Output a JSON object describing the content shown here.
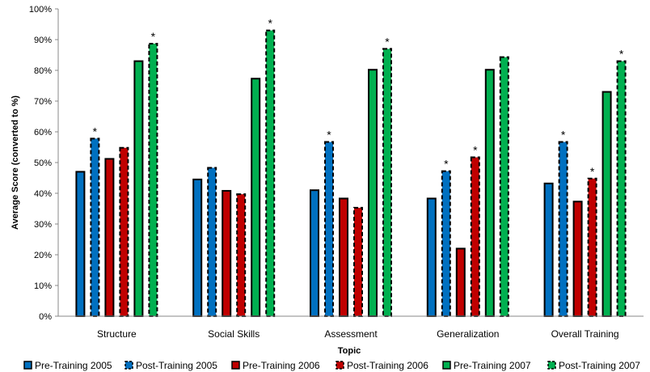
{
  "chart_data": {
    "type": "bar",
    "xlabel": "Topic",
    "ylabel": "Average Score (converted to %)",
    "ylim": [
      0,
      100
    ],
    "yticks": [
      "0%",
      "10%",
      "20%",
      "30%",
      "40%",
      "50%",
      "60%",
      "70%",
      "80%",
      "90%",
      "100%"
    ],
    "grid": false,
    "legend_position": "bottom",
    "categories": [
      "Structure",
      "Social Skills",
      "Assessment",
      "Generalization",
      "Overall Training"
    ],
    "series": [
      {
        "name": "Pre-Training 2005",
        "color": "#0070c0",
        "dashed": false,
        "values": [
          47,
          44.5,
          41,
          38.3,
          43.2
        ],
        "significant": [
          false,
          false,
          false,
          false,
          false
        ]
      },
      {
        "name": "Post-Training 2005",
        "color": "#0070c0",
        "dashed": true,
        "values": [
          57.8,
          48.3,
          56.7,
          47.2,
          56.7
        ],
        "significant": [
          true,
          false,
          true,
          true,
          true
        ]
      },
      {
        "name": "Pre-Training 2006",
        "color": "#c00000",
        "dashed": false,
        "values": [
          51.2,
          40.8,
          38.3,
          22,
          37.3
        ],
        "significant": [
          false,
          false,
          false,
          false,
          false
        ]
      },
      {
        "name": "Post-Training 2006",
        "color": "#c00000",
        "dashed": true,
        "values": [
          54.8,
          39.7,
          35.3,
          51.7,
          44.8
        ],
        "significant": [
          false,
          false,
          false,
          true,
          true
        ]
      },
      {
        "name": "Pre-Training 2007",
        "color": "#00b050",
        "dashed": false,
        "values": [
          83,
          77.3,
          80.2,
          80.2,
          73
        ],
        "significant": [
          false,
          false,
          false,
          false,
          false
        ]
      },
      {
        "name": "Post-Training 2007",
        "color": "#00b050",
        "dashed": true,
        "values": [
          88.7,
          93,
          87,
          84.3,
          83
        ],
        "significant": [
          true,
          true,
          true,
          false,
          true
        ]
      }
    ],
    "significance_marker": "*"
  }
}
